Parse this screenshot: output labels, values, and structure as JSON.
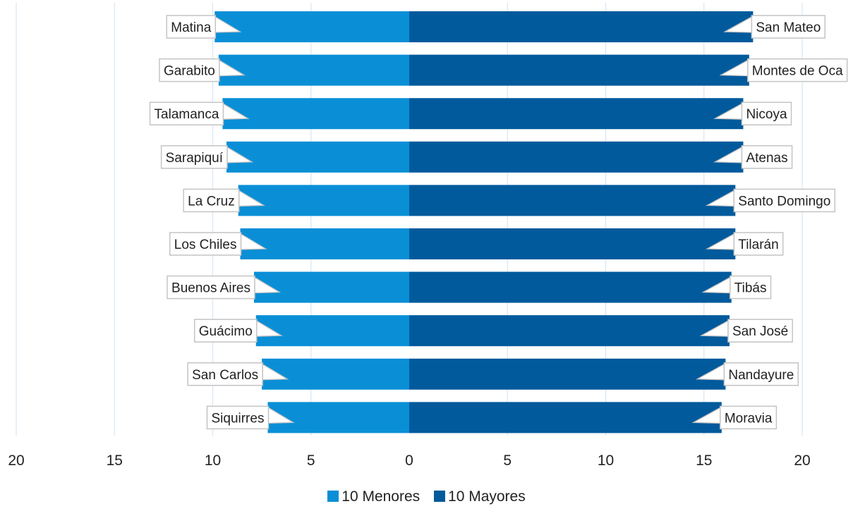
{
  "chart_data": {
    "type": "bar",
    "orientation": "horizontal-diverging",
    "title": "",
    "xlabel": "",
    "ylabel": "",
    "xlim": [
      -20,
      20
    ],
    "x_tick_labels": [
      "20",
      "15",
      "10",
      "5",
      "0",
      "5",
      "10",
      "15",
      "20"
    ],
    "grid": true,
    "legend_position": "bottom-center",
    "series": [
      {
        "name": "10 Menores",
        "color": "#0a8fd6",
        "categories": [
          "Matina",
          "Garabito",
          "Talamanca",
          "Sarapiquí",
          "La Cruz",
          "Los Chiles",
          "Buenos Aires",
          "Guácimo",
          "San Carlos",
          "Siquirres"
        ],
        "values": [
          9.9,
          9.7,
          9.5,
          9.3,
          8.7,
          8.6,
          7.9,
          7.8,
          7.5,
          7.2
        ]
      },
      {
        "name": "10 Mayores",
        "color": "#005a9c",
        "categories": [
          "San Mateo",
          "Montes de Oca",
          "Nicoya",
          "Atenas",
          "Santo Domingo",
          "Tilarán",
          "Tibás",
          "San José",
          "Nandayure",
          "Moravia"
        ],
        "values": [
          17.5,
          17.3,
          17.0,
          17.0,
          16.6,
          16.6,
          16.4,
          16.3,
          16.1,
          15.9
        ]
      }
    ]
  }
}
